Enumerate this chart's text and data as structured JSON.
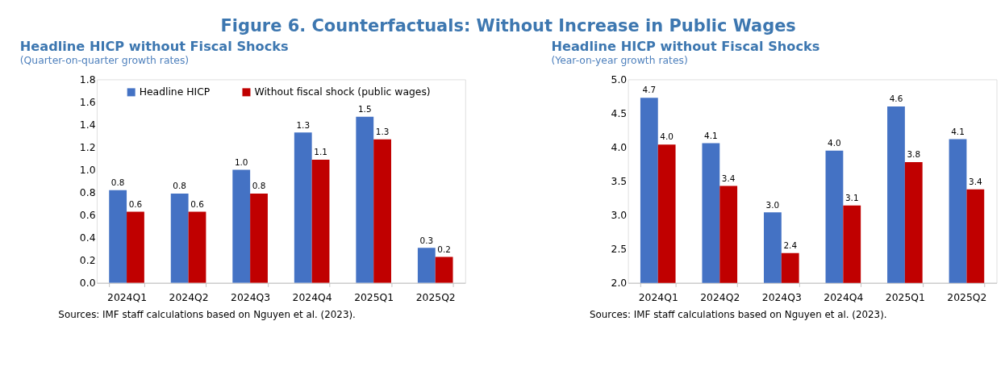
{
  "chart_data": [
    {
      "type": "bar",
      "title": "Headline HICP without Fiscal Shocks",
      "subtitle": "(Quarter-on-quarter growth rates)",
      "categories": [
        "2024Q1",
        "2024Q2",
        "2024Q3",
        "2024Q4",
        "2025Q1",
        "2025Q2"
      ],
      "series": [
        {
          "name": "Headline HICP",
          "color": "#4472c4",
          "values": [
            0.82,
            0.79,
            1.0,
            1.33,
            1.47,
            0.31
          ],
          "value_labels": [
            "0.8",
            "0.8",
            "1.0",
            "1.3",
            "1.5",
            "0.3"
          ]
        },
        {
          "name": "Without fiscal shock (public wages)",
          "color": "#c00000",
          "values": [
            0.63,
            0.63,
            0.79,
            1.09,
            1.27,
            0.23
          ],
          "value_labels": [
            "0.6",
            "0.6",
            "0.8",
            "1.1",
            "1.3",
            "0.2"
          ]
        }
      ],
      "ylim": [
        0,
        1.8
      ],
      "yticks": [
        {
          "value": 0,
          "label": "0.0"
        },
        0.2,
        0.4,
        0.6,
        0.8,
        {
          "value": 1,
          "label": "1.0"
        },
        1.2,
        1.4,
        1.6,
        1.8
      ],
      "grid": false,
      "legend": "top",
      "annotations": [
        "Figure 6. Counterfactuals: Without Increase in Public Wages",
        "Sources: IMF staff calculations based on Nguyen et al. (2023)."
      ]
    },
    {
      "type": "bar",
      "title": "Headline HICP without Fiscal Shocks",
      "subtitle": "(Year-on-year growth rates)",
      "categories": [
        "2024Q1",
        "2024Q2",
        "2024Q3",
        "2024Q4",
        "2025Q1",
        "2025Q2"
      ],
      "series": [
        {
          "name": "Headline HICP",
          "color": "#4472c4",
          "values": [
            4.73,
            4.06,
            3.04,
            3.95,
            4.6,
            4.12
          ],
          "value_labels": [
            "4.7",
            "4.1",
            "3.0",
            "4.0",
            "4.6",
            "4.1"
          ]
        },
        {
          "name": "Without fiscal shock (public wages)",
          "color": "#c00000",
          "values": [
            4.04,
            3.43,
            2.44,
            3.14,
            3.78,
            3.38
          ],
          "value_labels": [
            "4.0",
            "3.4",
            "2.4",
            "3.1",
            "3.8",
            "3.4"
          ]
        }
      ],
      "ylim": [
        2,
        5
      ],
      "yticks": [
        {
          "value": 2,
          "label": "2.0"
        },
        2.5,
        {
          "value": 3,
          "label": "3.0"
        },
        3.5,
        {
          "value": 4,
          "label": "4.0"
        },
        4.5,
        {
          "value": 5,
          "label": "5.0"
        }
      ],
      "grid": false,
      "legend": "top left",
      "annotations": [
        "Sources: IMF staff calculations based on Nguyen et al. (2023)."
      ]
    }
  ]
}
